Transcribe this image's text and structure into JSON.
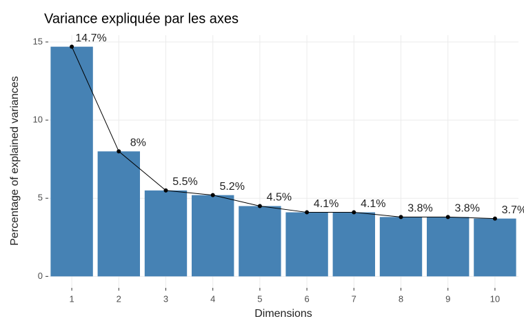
{
  "chart_data": {
    "type": "bar",
    "title": "Variance expliquée par les axes",
    "x_label": "Dimensions",
    "y_label": "Percentage of explained variances",
    "categories": [
      "1",
      "2",
      "3",
      "4",
      "5",
      "6",
      "7",
      "8",
      "9",
      "10"
    ],
    "values": [
      14.7,
      8,
      5.5,
      5.2,
      4.5,
      4.1,
      4.1,
      3.8,
      3.8,
      3.7
    ],
    "value_labels": [
      "14.7%",
      "8%",
      "5.5%",
      "5.2%",
      "4.5%",
      "4.1%",
      "4.1%",
      "3.8%",
      "3.8%",
      "3.7%"
    ],
    "color": "#4682b4",
    "line_color": "#000000",
    "ylim": [
      -0.735,
      15.435
    ],
    "yticks": [
      0,
      5,
      10,
      15
    ],
    "grid": true
  }
}
